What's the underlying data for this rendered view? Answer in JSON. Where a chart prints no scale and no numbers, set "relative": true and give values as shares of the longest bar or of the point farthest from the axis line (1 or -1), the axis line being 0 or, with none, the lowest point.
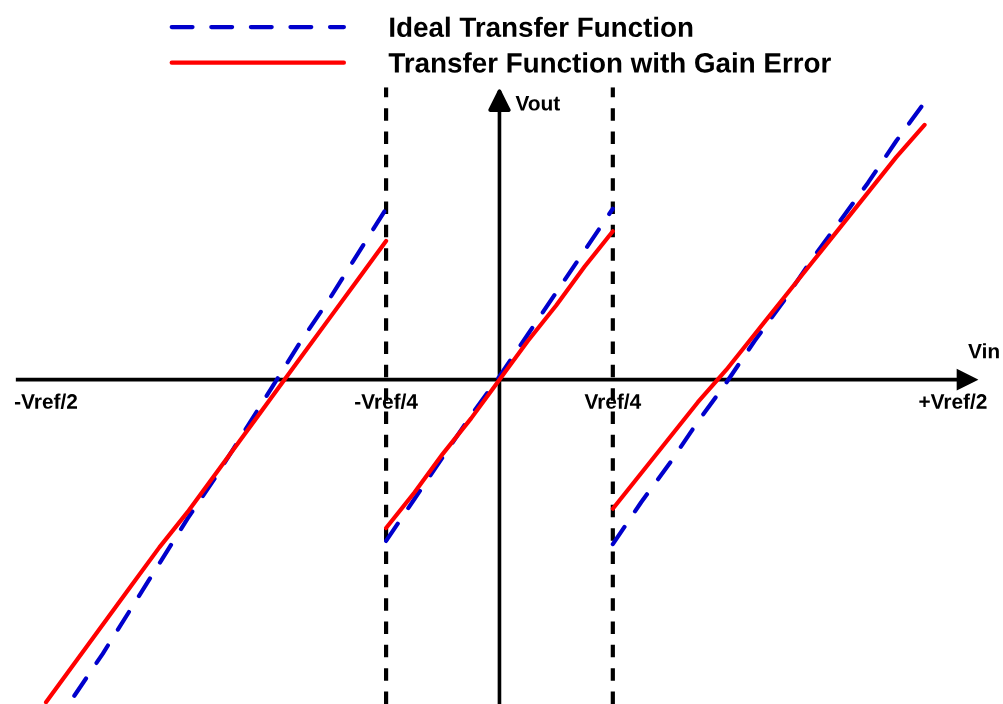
{
  "chart_data": {
    "type": "line",
    "relative": true,
    "xlabel": "Vin",
    "ylabel": "Vout",
    "tick_labels": "x",
    "legend": "top",
    "categories": [
      "-Vref/2",
      null,
      null,
      null,
      null,
      null,
      null,
      null,
      null,
      null,
      null,
      null,
      "-Vref/4",
      null,
      null,
      null,
      null,
      null,
      null,
      null,
      "Vref/4",
      null,
      null,
      null,
      null,
      null,
      null,
      null,
      null,
      null,
      null,
      null,
      "+Vref/2"
    ],
    "series": [
      {
        "name": "Ideal Transfer Function",
        "color": "#0000cc",
        "line_style": "dashed",
        "values": [
          null,
          -0.98,
          -0.85,
          -0.71,
          -0.57,
          -0.43,
          -0.3,
          -0.16,
          -0.02,
          0.12,
          0.25,
          0.39,
          0.53,
          null,
          null,
          null,
          null,
          null,
          null,
          null,
          null,
          null,
          null,
          null,
          null,
          null,
          null,
          null,
          null,
          null,
          null,
          null,
          null
        ]
      },
      {
        "color": "#0000cc",
        "line_style": "dashed",
        "values": [
          null,
          null,
          null,
          null,
          null,
          null,
          null,
          null,
          null,
          null,
          null,
          null,
          -0.5,
          -0.37,
          -0.24,
          -0.11,
          0.01,
          0.14,
          0.27,
          0.4,
          0.53,
          null,
          null,
          null,
          null,
          null,
          null,
          null,
          null,
          null,
          null,
          null,
          null
        ]
      },
      {
        "color": "#0000cc",
        "line_style": "dashed",
        "values": [
          null,
          null,
          null,
          null,
          null,
          null,
          null,
          null,
          null,
          null,
          null,
          null,
          null,
          null,
          null,
          null,
          null,
          null,
          null,
          null,
          -0.51,
          -0.38,
          -0.26,
          -0.13,
          -0.01,
          0.12,
          0.24,
          0.37,
          0.49,
          0.61,
          0.74,
          0.86,
          null
        ]
      },
      {
        "name": "Transfer Function with Gain Error",
        "color": "#ff0000",
        "line_style": "solid",
        "values": [
          -1.0,
          -0.88,
          -0.76,
          -0.64,
          -0.52,
          -0.41,
          -0.29,
          -0.17,
          -0.05,
          0.07,
          0.19,
          0.31,
          0.43,
          null,
          null,
          null,
          null,
          null,
          null,
          null,
          null,
          null,
          null,
          null,
          null,
          null,
          null,
          null,
          null,
          null,
          null,
          null,
          null
        ]
      },
      {
        "color": "#ff0000",
        "line_style": "solid",
        "values": [
          null,
          null,
          null,
          null,
          null,
          null,
          null,
          null,
          null,
          null,
          null,
          null,
          -0.46,
          -0.35,
          -0.23,
          -0.12,
          0.0,
          0.12,
          0.23,
          0.35,
          0.46,
          null,
          null,
          null,
          null,
          null,
          null,
          null,
          null,
          null,
          null,
          null,
          null
        ]
      },
      {
        "color": "#ff0000",
        "line_style": "solid",
        "values": [
          null,
          null,
          null,
          null,
          null,
          null,
          null,
          null,
          null,
          null,
          null,
          null,
          null,
          null,
          null,
          null,
          null,
          null,
          null,
          null,
          -0.4,
          -0.29,
          -0.18,
          -0.07,
          0.03,
          0.14,
          0.25,
          0.36,
          0.47,
          0.58,
          0.69,
          0.79,
          null
        ]
      }
    ],
    "ref_lines": [
      {
        "axis": "x",
        "value": "-Vref/4",
        "color": "#000000",
        "line_style": "dashed"
      },
      {
        "axis": "x",
        "value": "Vref/4",
        "color": "#000000",
        "line_style": "dashed"
      }
    ]
  }
}
